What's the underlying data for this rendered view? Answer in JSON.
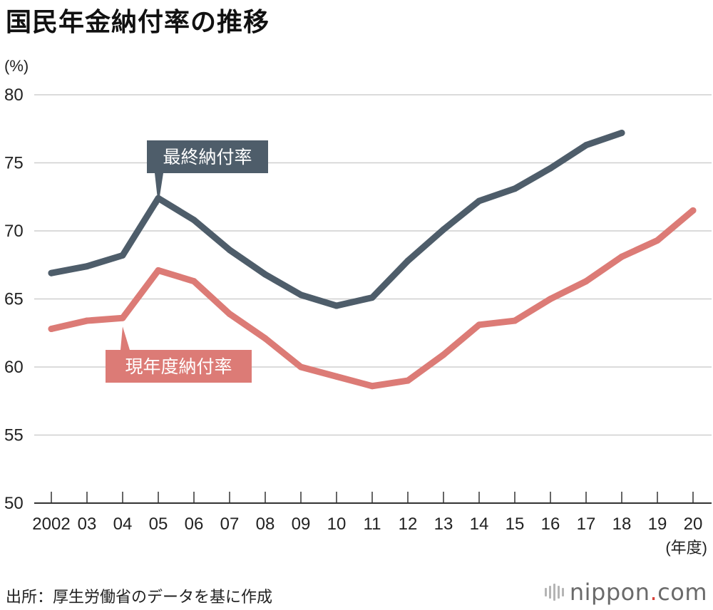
{
  "title": "国民年金納付率の推移",
  "source": "出所：厚生労働省のデータを基に作成",
  "logo": {
    "name": "nippon",
    "dot": ".",
    "tld": "com"
  },
  "colors": {
    "final": "#4e5d6a",
    "current": "#dc7b76",
    "grid": "#cfcfcf",
    "axis": "#333333",
    "logo_dot": "#d8413a"
  },
  "chart_data": {
    "type": "line",
    "title": "国民年金納付率の推移",
    "ylabel": "(%)",
    "xlabel": "(年度)",
    "ylim": [
      50,
      80
    ],
    "yticks": [
      50,
      55,
      60,
      65,
      70,
      75,
      80
    ],
    "categories": [
      "2002",
      "03",
      "04",
      "05",
      "06",
      "07",
      "08",
      "09",
      "10",
      "11",
      "12",
      "13",
      "14",
      "15",
      "16",
      "17",
      "18",
      "19",
      "20"
    ],
    "series": [
      {
        "name": "最終納付率",
        "key": "final",
        "values": [
          66.9,
          67.4,
          68.2,
          72.4,
          70.8,
          68.6,
          66.8,
          65.3,
          64.5,
          65.1,
          67.8,
          70.1,
          72.2,
          73.1,
          74.6,
          76.3,
          77.2,
          null,
          null
        ]
      },
      {
        "name": "現年度納付率",
        "key": "current",
        "values": [
          62.8,
          63.4,
          63.6,
          67.1,
          66.3,
          63.9,
          62.1,
          60.0,
          59.3,
          58.6,
          59.0,
          60.9,
          63.1,
          63.4,
          65.0,
          66.3,
          68.1,
          69.3,
          71.5
        ]
      }
    ],
    "annotations": [
      {
        "series": "final",
        "label": "最終納付率",
        "category_index": 3
      },
      {
        "series": "current",
        "label": "現年度納付率",
        "category_index": 2
      }
    ]
  }
}
